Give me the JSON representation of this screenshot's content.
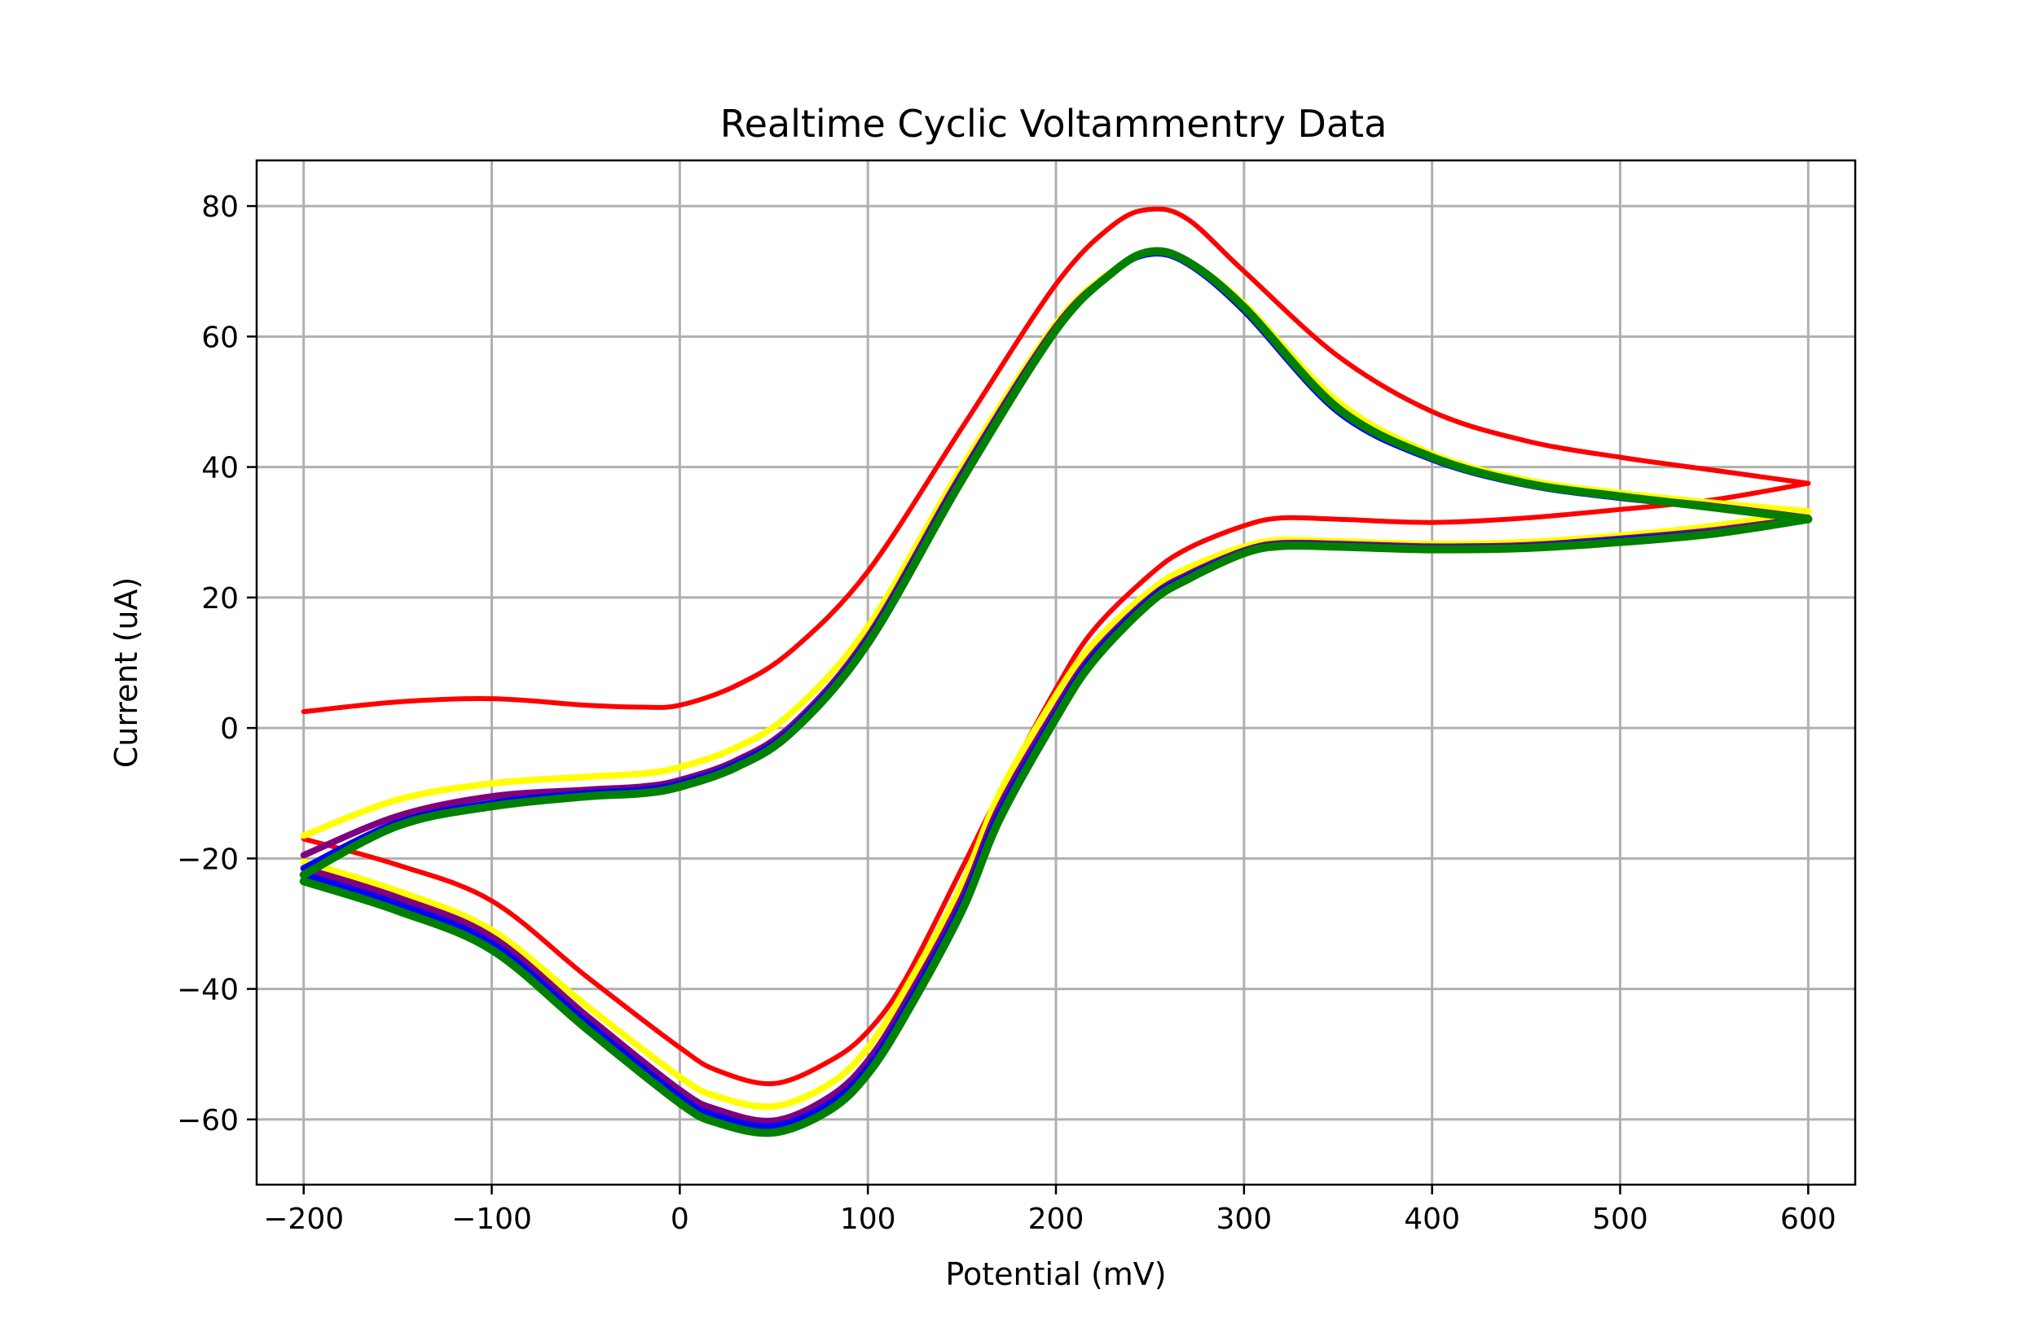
{
  "chart_data": {
    "type": "line",
    "title": "Realtime Cyclic Voltammentry Data",
    "xlabel": "Potential (mV)",
    "ylabel": "Current (uA)",
    "xlim": [
      -225,
      625
    ],
    "ylim": [
      -70,
      87
    ],
    "xticks": [
      -200,
      -100,
      0,
      100,
      200,
      300,
      400,
      500,
      600
    ],
    "xtick_labels": [
      "−200",
      "−100",
      "0",
      "100",
      "200",
      "300",
      "400",
      "500",
      "600"
    ],
    "yticks": [
      -60,
      -40,
      -20,
      0,
      20,
      40,
      60,
      80
    ],
    "ytick_labels": [
      "−60",
      "−40",
      "−20",
      "0",
      "20",
      "40",
      "60",
      "80"
    ],
    "grid": true,
    "legend": "none",
    "series": [
      {
        "color": "#ff0000",
        "forward_x": [
          -200,
          -150,
          -100,
          -50,
          -20,
          0,
          30,
          60,
          100,
          150,
          200,
          230,
          250,
          270,
          300,
          350,
          400,
          450,
          500,
          550,
          600
        ],
        "forward_y": [
          2.5,
          4.0,
          4.5,
          3.5,
          3.2,
          3.5,
          6.5,
          12,
          24,
          46,
          68,
          77,
          79.5,
          78,
          70,
          57,
          48.5,
          44,
          41.5,
          39.5,
          37.5
        ],
        "reverse_x": [
          600,
          550,
          500,
          450,
          400,
          350,
          320,
          300,
          270,
          250,
          220,
          200,
          170,
          150,
          120,
          100,
          80,
          50,
          20,
          0,
          -50,
          -100,
          -150,
          -200
        ],
        "reverse_y": [
          37.5,
          35,
          33.5,
          32.2,
          31.5,
          32,
          32.2,
          31,
          27.5,
          23.5,
          15,
          6,
          -10,
          -21.5,
          -38.5,
          -46.5,
          -51,
          -54.5,
          -52.5,
          -49,
          -38,
          -26.5,
          -21,
          -17
        ]
      },
      {
        "color": "#ffff00",
        "forward_x": [
          -200,
          -150,
          -100,
          -50,
          -20,
          0,
          30,
          60,
          100,
          150,
          200,
          230,
          250,
          270,
          300,
          350,
          400,
          450,
          500,
          550,
          600
        ],
        "forward_y": [
          -16.5,
          -11,
          -8.5,
          -7.5,
          -7,
          -6,
          -3,
          2.5,
          15.5,
          40,
          62,
          70,
          72.8,
          71.5,
          65,
          50,
          42,
          38,
          36,
          34.5,
          33.2
        ],
        "reverse_x": [
          600,
          550,
          500,
          450,
          400,
          350,
          320,
          300,
          270,
          250,
          220,
          200,
          170,
          150,
          120,
          100,
          80,
          50,
          20,
          0,
          -50,
          -100,
          -150,
          -200
        ],
        "reverse_y": [
          33.2,
          31,
          29.5,
          28.5,
          28.2,
          28.6,
          28.8,
          27.8,
          24.5,
          21,
          13,
          5,
          -10,
          -24,
          -40,
          -49,
          -54.5,
          -58,
          -56.5,
          -53.5,
          -42.5,
          -31,
          -25,
          -20.5
        ]
      },
      {
        "color": "#800080",
        "forward_x": [
          -200,
          -150,
          -100,
          -50,
          -20,
          0,
          30,
          60,
          100,
          150,
          200,
          230,
          250,
          270,
          300,
          350,
          400,
          450,
          500,
          550,
          600
        ],
        "forward_y": [
          -19.5,
          -13.5,
          -10.5,
          -9.5,
          -9,
          -8,
          -5,
          0.5,
          14,
          39,
          61.5,
          69.8,
          72.8,
          71.5,
          64.5,
          49,
          41.5,
          37.5,
          35.5,
          34,
          32.2
        ],
        "reverse_x": [
          600,
          550,
          500,
          450,
          400,
          350,
          320,
          300,
          270,
          250,
          220,
          200,
          170,
          150,
          120,
          100,
          80,
          50,
          20,
          0,
          -50,
          -100,
          -150,
          -200
        ],
        "reverse_y": [
          32.2,
          30.3,
          29,
          28,
          27.8,
          28.2,
          28.3,
          27.2,
          23.5,
          20,
          11.5,
          3,
          -12,
          -26,
          -42,
          -51,
          -56.5,
          -60.2,
          -58.5,
          -55.5,
          -44,
          -32,
          -26,
          -21.5
        ]
      },
      {
        "color": "#0000ff",
        "forward_x": [
          -200,
          -150,
          -100,
          -50,
          -20,
          0,
          30,
          60,
          100,
          150,
          200,
          230,
          250,
          270,
          300,
          350,
          400,
          450,
          500,
          550,
          600
        ],
        "forward_y": [
          -21.5,
          -14.5,
          -11.5,
          -10,
          -9.5,
          -8.5,
          -5.5,
          0,
          13.5,
          38.5,
          61.2,
          69.8,
          72.7,
          71.2,
          64,
          48.5,
          41.2,
          37.3,
          35.3,
          33.8,
          32
        ],
        "reverse_x": [
          600,
          550,
          500,
          450,
          400,
          350,
          320,
          300,
          270,
          250,
          220,
          200,
          170,
          150,
          120,
          100,
          80,
          50,
          20,
          0,
          -50,
          -100,
          -150,
          -200
        ],
        "reverse_y": [
          32,
          30,
          28.8,
          27.8,
          27.6,
          28,
          28.1,
          27,
          23.2,
          19.7,
          11,
          2.2,
          -13,
          -27,
          -43,
          -52,
          -57.5,
          -61,
          -59.5,
          -56.5,
          -45,
          -33,
          -27,
          -22.5
        ]
      },
      {
        "color": "#008000",
        "forward_x": [
          -200,
          -150,
          -100,
          -50,
          -20,
          0,
          30,
          60,
          100,
          150,
          200,
          230,
          250,
          270,
          300,
          350,
          400,
          450,
          500,
          550,
          600
        ],
        "forward_y": [
          -22.5,
          -15,
          -12,
          -10.5,
          -10,
          -9,
          -6,
          -0.5,
          13,
          38,
          61,
          69.8,
          73,
          71.5,
          64.5,
          49,
          41.5,
          37.5,
          35.5,
          33.8,
          32
        ],
        "reverse_x": [
          600,
          550,
          500,
          450,
          400,
          350,
          320,
          300,
          270,
          250,
          220,
          200,
          170,
          150,
          120,
          100,
          80,
          50,
          20,
          0,
          -50,
          -100,
          -150,
          -200
        ],
        "reverse_y": [
          32,
          29.8,
          28.5,
          27.6,
          27.4,
          27.8,
          27.9,
          26.8,
          22.8,
          19.2,
          10.3,
          1.5,
          -14,
          -28,
          -44,
          -53,
          -58.5,
          -62,
          -60.5,
          -57.5,
          -46,
          -34,
          -28,
          -23.5
        ]
      }
    ]
  }
}
